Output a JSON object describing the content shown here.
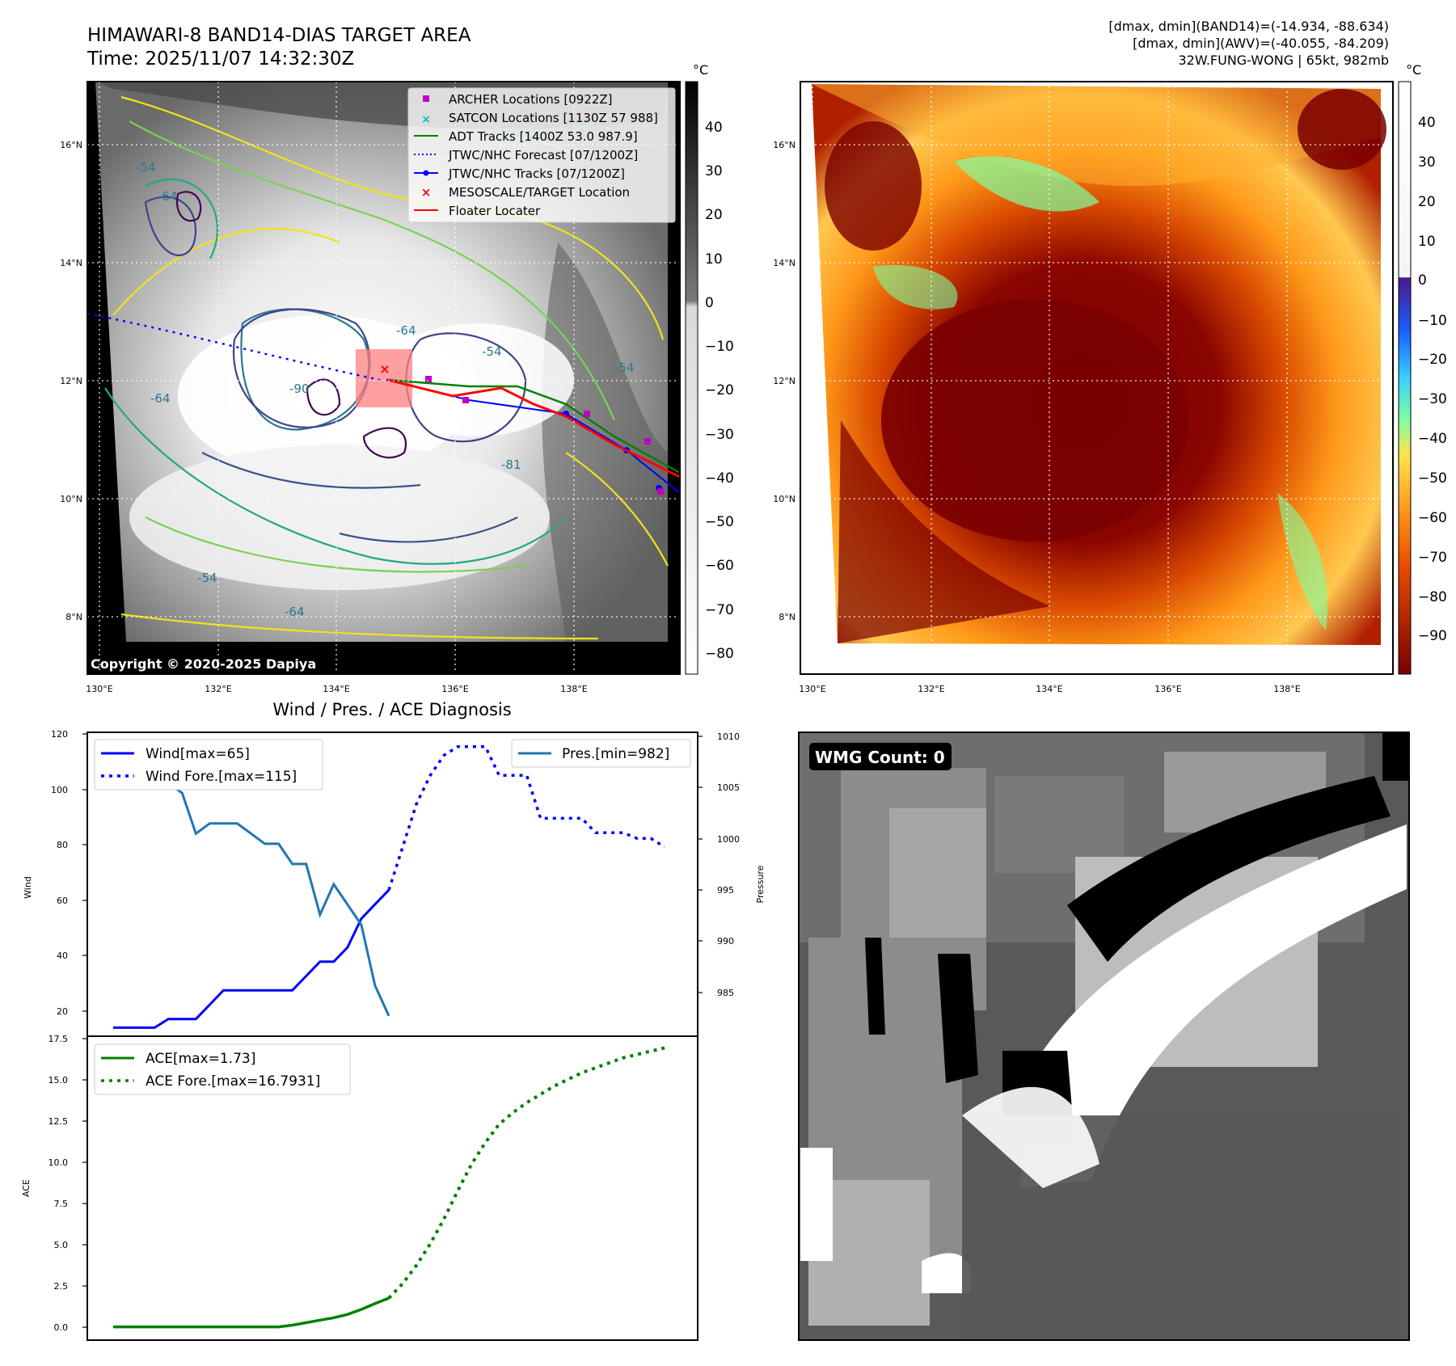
{
  "header": {
    "title_line1": "HIMAWARI-8 BAND14-DIAS TARGET AREA",
    "title_line2": "Time: 2025/11/07 14:32:30Z",
    "info_line1": "[dmax, dmin](BAND14)=(-14.934, -88.634)",
    "info_line2": "[dmax, dmin](AWV)=(-40.055, -84.209)",
    "info_line3": "32W.FUNG-WONG | 65kt, 982mb"
  },
  "maps": {
    "lat_labels": [
      "16°N",
      "14°N",
      "12°N",
      "10°N",
      "8°N"
    ],
    "lon_labels": [
      "130°E",
      "132°E",
      "134°E",
      "136°E",
      "138°E"
    ],
    "copyright": "Copyright © 2020-2025 Dapiya",
    "contour_labels": [
      "-54",
      "-64",
      "-64",
      "-90",
      "-81",
      "-54",
      "-64",
      "-64",
      "-54",
      "-54"
    ],
    "legend": [
      {
        "label": "ARCHER Locations [0922Z]",
        "marker": "square",
        "color": "#bf00bf"
      },
      {
        "label": "SATCON Locations [1130Z 57 988]",
        "marker": "x",
        "color": "#00bfbf"
      },
      {
        "label": "ADT Tracks [1400Z 53.0 987.9]",
        "marker": "line",
        "color": "#008000"
      },
      {
        "label": "JTWC/NHC Forecast [07/1200Z]",
        "marker": "dotted",
        "color": "#0000ff"
      },
      {
        "label": "JTWC/NHC Tracks [07/1200Z]",
        "marker": "dotline",
        "color": "#0000ff"
      },
      {
        "label": "MESOSCALE/TARGET Location",
        "marker": "x",
        "color": "#ff0000"
      },
      {
        "label": "Floater Locater",
        "marker": "line",
        "color": "#ff0000"
      }
    ]
  },
  "colorbar1": {
    "unit": "°C",
    "ticks": [
      "40",
      "30",
      "20",
      "10",
      "0",
      "−10",
      "−20",
      "−30",
      "−40",
      "−50",
      "−60",
      "−70",
      "−80"
    ],
    "colors": {
      "top": "#000000",
      "bottom": "#ffffff"
    }
  },
  "colorbar2": {
    "unit": "°C",
    "ticks": [
      "40",
      "30",
      "20",
      "10",
      "0",
      "−10",
      "−20",
      "−30",
      "−40",
      "−50",
      "−60",
      "−70",
      "−80",
      "−90"
    ]
  },
  "chart_data": [
    {
      "type": "line",
      "title": "Wind / Pres. / ACE Diagnosis",
      "ylabel": "Wind",
      "ylabel_right": "Pressure",
      "ylim": [
        14,
        120
      ],
      "ylim_right": [
        980,
        1010
      ],
      "y_ticks": [
        "120",
        "100",
        "80",
        "60",
        "40",
        "20"
      ],
      "y_ticks_right": [
        "1010",
        "1005",
        "1000",
        "995",
        "990",
        "985"
      ],
      "x": [
        0,
        1,
        2,
        3,
        4,
        5,
        6,
        7,
        8,
        9,
        10,
        11,
        12,
        13,
        14,
        15,
        16,
        17,
        18,
        19,
        20,
        21,
        22,
        23,
        24,
        25,
        26,
        27,
        28,
        29,
        30,
        31,
        32,
        33,
        34,
        35,
        36,
        37,
        38,
        39,
        40
      ],
      "series": [
        {
          "name": "Wind[max=65]",
          "axis": "left",
          "color": "#0000ff",
          "style": "solid",
          "x": [
            0,
            1,
            2,
            3,
            4,
            5,
            6,
            7,
            8,
            9,
            10,
            11,
            12,
            13,
            14,
            15,
            16,
            17,
            18,
            19,
            20
          ],
          "values": [
            17,
            17,
            17,
            17,
            20,
            20,
            20,
            25,
            30,
            30,
            30,
            30,
            30,
            30,
            35,
            40,
            40,
            45,
            55,
            60,
            65
          ]
        },
        {
          "name": "Wind Fore.[max=115]",
          "axis": "left",
          "color": "#0000ff",
          "style": "dotted",
          "x": [
            20,
            21,
            22,
            23,
            24,
            25,
            26,
            27,
            28,
            29,
            30,
            31,
            32,
            33,
            34,
            35,
            36,
            37,
            38,
            39,
            40
          ],
          "values": [
            65,
            80,
            95,
            105,
            112,
            115,
            115,
            115,
            105,
            105,
            105,
            90,
            90,
            90,
            90,
            85,
            85,
            85,
            83,
            83,
            80
          ]
        },
        {
          "name": "Pres.[min=982]",
          "axis": "right",
          "color": "#1f77b4",
          "style": "solid",
          "x": [
            0,
            1,
            2,
            3,
            4,
            5,
            6,
            7,
            8,
            9,
            10,
            11,
            12,
            13,
            14,
            15,
            16,
            17,
            18,
            19,
            20
          ],
          "values": [
            1009,
            1006,
            1006,
            1006,
            1005,
            1004,
            1000,
            1001,
            1001,
            1001,
            1000,
            999,
            999,
            997,
            997,
            992,
            995,
            993,
            991,
            985,
            982
          ]
        }
      ]
    },
    {
      "type": "line",
      "ylabel": "ACE",
      "ylim": [
        -0.8,
        17.5
      ],
      "y_ticks": [
        "17.5",
        "15.0",
        "12.5",
        "10.0",
        "7.5",
        "5.0",
        "2.5",
        "0.0"
      ],
      "series": [
        {
          "name": "ACE[max=1.73]",
          "color": "#008000",
          "style": "solid",
          "x": [
            0,
            1,
            2,
            3,
            4,
            5,
            6,
            7,
            8,
            9,
            10,
            11,
            12,
            13,
            14,
            15,
            16,
            17,
            18,
            19,
            20
          ],
          "values": [
            0,
            0,
            0,
            0,
            0,
            0,
            0,
            0,
            0,
            0,
            0,
            0,
            0,
            0.1,
            0.25,
            0.4,
            0.55,
            0.75,
            1.05,
            1.4,
            1.73
          ]
        },
        {
          "name": "ACE Fore.[max=16.7931]",
          "color": "#008000",
          "style": "dotted",
          "x": [
            20,
            21,
            22,
            23,
            24,
            25,
            26,
            27,
            28,
            29,
            30,
            31,
            32,
            33,
            34,
            35,
            36,
            37,
            38,
            39,
            40
          ],
          "values": [
            1.73,
            2.6,
            3.7,
            5.0,
            6.5,
            8.2,
            9.8,
            11.1,
            12.2,
            12.9,
            13.5,
            14.0,
            14.5,
            14.9,
            15.3,
            15.6,
            15.9,
            16.2,
            16.4,
            16.6,
            16.7931
          ]
        }
      ]
    }
  ],
  "wmg": {
    "label": "WMG Count: 0"
  }
}
